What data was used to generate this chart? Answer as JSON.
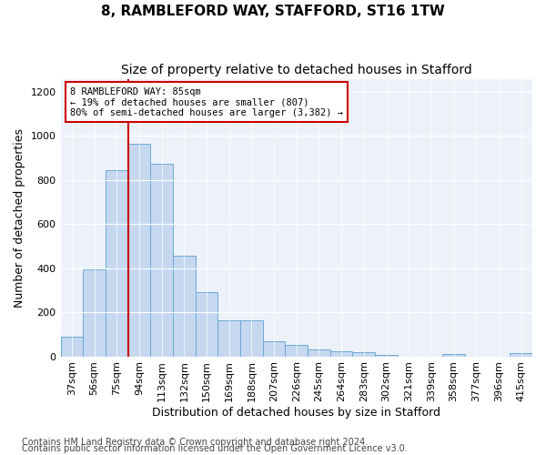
{
  "title": "8, RAMBLEFORD WAY, STAFFORD, ST16 1TW",
  "subtitle": "Size of property relative to detached houses in Stafford",
  "xlabel": "Distribution of detached houses by size in Stafford",
  "ylabel": "Number of detached properties",
  "footnote1": "Contains HM Land Registry data © Crown copyright and database right 2024.",
  "footnote2": "Contains public sector information licensed under the Open Government Licence v3.0.",
  "categories": [
    "37sqm",
    "56sqm",
    "75sqm",
    "94sqm",
    "113sqm",
    "132sqm",
    "150sqm",
    "169sqm",
    "188sqm",
    "207sqm",
    "226sqm",
    "245sqm",
    "264sqm",
    "283sqm",
    "302sqm",
    "321sqm",
    "339sqm",
    "358sqm",
    "377sqm",
    "396sqm",
    "415sqm"
  ],
  "values": [
    90,
    395,
    845,
    965,
    875,
    455,
    290,
    162,
    162,
    68,
    50,
    30,
    25,
    18,
    5,
    0,
    0,
    10,
    0,
    0,
    15
  ],
  "bar_color": "#c5d8f0",
  "bar_edgecolor": "#6aaad4",
  "vline_color": "#cc0000",
  "annotation_text": "8 RAMBLEFORD WAY: 85sqm\n← 19% of detached houses are smaller (807)\n80% of semi-detached houses are larger (3,382) →",
  "annotation_box_color": "#cc0000",
  "ylim": [
    0,
    1260
  ],
  "yticks": [
    0,
    200,
    400,
    600,
    800,
    1000,
    1200
  ],
  "title_fontsize": 11,
  "subtitle_fontsize": 10,
  "xlabel_fontsize": 9,
  "ylabel_fontsize": 9,
  "tick_fontsize": 8,
  "footnote_fontsize": 7,
  "background_color": "#edf2fa"
}
